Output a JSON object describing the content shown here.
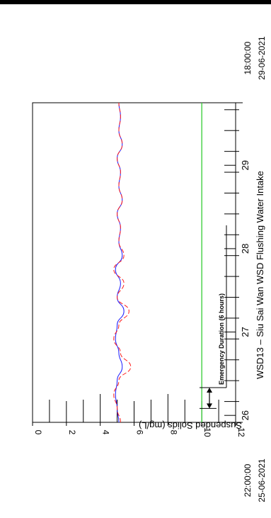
{
  "chart_data": {
    "type": "line",
    "title": "WSD13  –  Siu Sai Wan WSD Flushing Water Intake",
    "ylabel": "Suspended Solids (mg/L)",
    "ylim": [
      0,
      12
    ],
    "y_ticks": [
      "0",
      "2",
      "4",
      "6",
      "8",
      "10",
      "12"
    ],
    "xlim": [
      "2021-06-25 22:00",
      "2021-06-29 18:00"
    ],
    "x_ticks": [
      "26",
      "27",
      "28",
      "29"
    ],
    "x_start_label": [
      "22:00:00",
      "25-06-2021"
    ],
    "x_end_label": [
      "18:00:00",
      "29-06-2021"
    ],
    "threshold": {
      "value": 10,
      "color": "#33cc33"
    },
    "emergency": {
      "label": "Emergency Duration (6 hours)",
      "start": "2021-06-26 02:00",
      "end": "2021-06-26 08:00"
    },
    "series": [
      {
        "color": "#1a1aff",
        "style": "solid",
        "x": [
          "2021-06-25 22:00",
          "2021-06-26 02:00",
          "2021-06-26 06:00",
          "2021-06-26 10:00",
          "2021-06-26 14:00",
          "2021-06-26 18:00",
          "2021-06-26 22:00",
          "2021-06-27 02:00",
          "2021-06-27 06:00",
          "2021-06-27 10:00",
          "2021-06-27 14:00",
          "2021-06-27 18:00",
          "2021-06-27 22:00",
          "2021-06-28 02:00",
          "2021-06-28 06:00",
          "2021-06-28 10:00",
          "2021-06-28 14:00",
          "2021-06-28 18:00",
          "2021-06-28 22:00",
          "2021-06-29 02:00",
          "2021-06-29 06:00",
          "2021-06-29 10:00",
          "2021-06-29 14:00",
          "2021-06-29 18:00"
        ],
        "values": [
          5.1,
          5.0,
          4.9,
          5.0,
          5.3,
          5.1,
          4.9,
          5.0,
          5.4,
          5.0,
          5.2,
          4.9,
          5.3,
          5.1,
          5.2,
          5.0,
          5.3,
          5.1,
          5.2,
          5.0,
          5.3,
          5.1,
          5.2,
          5.1
        ]
      },
      {
        "color": "#ff1a1a",
        "style": "dashed",
        "x": [
          "2021-06-25 22:00",
          "2021-06-26 02:00",
          "2021-06-26 06:00",
          "2021-06-26 10:00",
          "2021-06-26 14:00",
          "2021-06-26 18:00",
          "2021-06-26 22:00",
          "2021-06-27 02:00",
          "2021-06-27 06:00",
          "2021-06-27 10:00",
          "2021-06-27 14:00",
          "2021-06-27 18:00",
          "2021-06-27 22:00",
          "2021-06-28 02:00",
          "2021-06-28 06:00",
          "2021-06-28 10:00",
          "2021-06-28 14:00",
          "2021-06-28 18:00",
          "2021-06-28 22:00",
          "2021-06-29 02:00",
          "2021-06-29 06:00",
          "2021-06-29 10:00",
          "2021-06-29 14:00",
          "2021-06-29 18:00"
        ],
        "values": [
          5.2,
          5.0,
          4.8,
          5.1,
          5.8,
          5.2,
          4.8,
          5.1,
          5.7,
          5.0,
          5.4,
          4.8,
          5.4,
          5.1,
          5.2,
          5.0,
          5.3,
          5.1,
          5.2,
          5.0,
          5.3,
          5.1,
          5.2,
          5.1
        ]
      }
    ]
  }
}
